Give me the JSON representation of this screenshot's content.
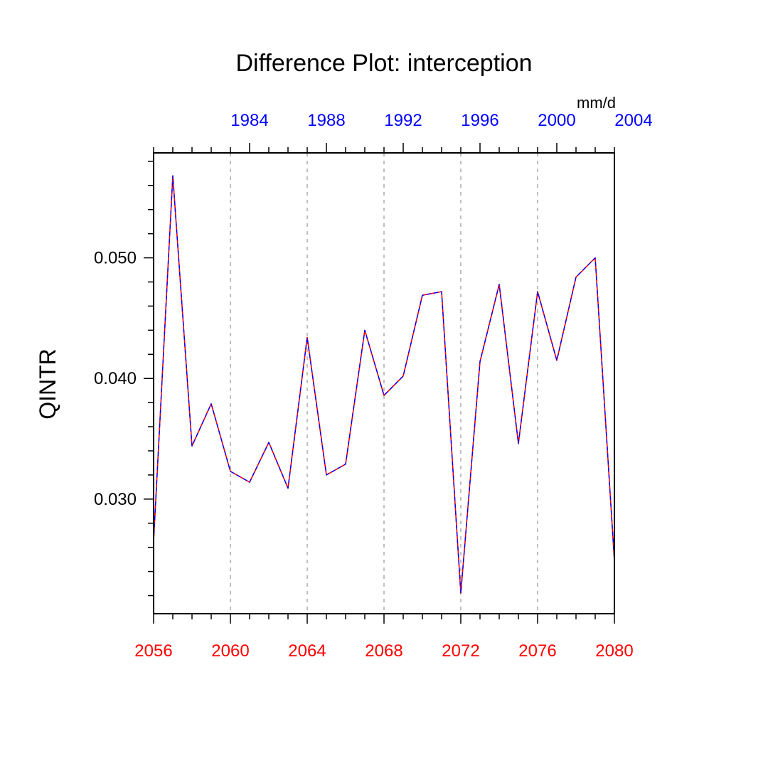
{
  "chart_data": {
    "type": "line",
    "title": "Difference Plot: interception",
    "ylabel": "QINTR",
    "units": "mm/d",
    "xlim": [
      2056,
      2080
    ],
    "ylim": [
      0.0205,
      0.0587
    ],
    "grid": "vertical-dashed",
    "x": [
      2056,
      2057,
      2058,
      2059,
      2060,
      2061,
      2062,
      2063,
      2064,
      2065,
      2066,
      2067,
      2068,
      2069,
      2070,
      2071,
      2072,
      2073,
      2074,
      2075,
      2076,
      2077,
      2078,
      2079,
      2080
    ],
    "series": [
      {
        "color": "#ff0000",
        "values": [
          0.0265,
          0.0568,
          0.0344,
          0.0379,
          0.0323,
          0.0314,
          0.0347,
          0.0309,
          0.0434,
          0.032,
          0.0329,
          0.044,
          0.0386,
          0.0402,
          0.0469,
          0.0472,
          0.0222,
          0.0414,
          0.0478,
          0.0346,
          0.0472,
          0.0415,
          0.0484,
          0.05,
          0.0249
        ]
      },
      {
        "color": "#0000ff",
        "values": [
          0.0265,
          0.0568,
          0.0344,
          0.0379,
          0.0323,
          0.0314,
          0.0347,
          0.0309,
          0.0434,
          0.032,
          0.0329,
          0.044,
          0.0386,
          0.0402,
          0.0469,
          0.0472,
          0.0222,
          0.0414,
          0.0478,
          0.0346,
          0.0472,
          0.0415,
          0.0484,
          0.05,
          0.0249
        ]
      }
    ],
    "y_ticks": [
      {
        "value": 0.03,
        "label": "0.030"
      },
      {
        "value": 0.04,
        "label": "0.040"
      },
      {
        "value": 0.05,
        "label": "0.050"
      }
    ],
    "x_ticks_bottom": {
      "color": "#ff0000",
      "ticks": [
        {
          "value": 2056,
          "label": "2056"
        },
        {
          "value": 2060,
          "label": "2060"
        },
        {
          "value": 2064,
          "label": "2064"
        },
        {
          "value": 2068,
          "label": "2068"
        },
        {
          "value": 2072,
          "label": "2072"
        },
        {
          "value": 2076,
          "label": "2076"
        },
        {
          "value": 2080,
          "label": "2080"
        }
      ]
    },
    "x_ticks_top": {
      "color": "#0000ff",
      "offset_years": -77,
      "ticks": [
        {
          "value": 1984,
          "label": "1984"
        },
        {
          "value": 1988,
          "label": "1988"
        },
        {
          "value": 1992,
          "label": "1992"
        },
        {
          "value": 1996,
          "label": "1996"
        },
        {
          "value": 2000,
          "label": "2000"
        },
        {
          "value": 2004,
          "label": "2004"
        }
      ]
    }
  }
}
